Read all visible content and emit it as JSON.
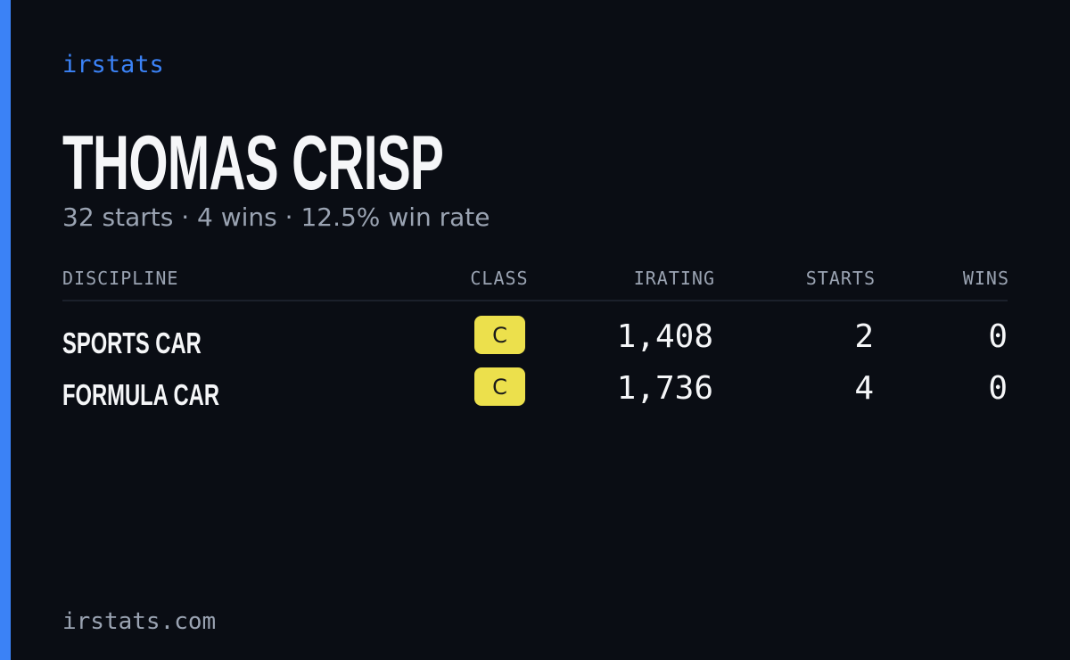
{
  "brand": "irstats",
  "header": {
    "name": "THOMAS CRISP",
    "summary": "32 starts · 4 wins · 12.5% win rate"
  },
  "table": {
    "columns": [
      "DISCIPLINE",
      "CLASS",
      "IRATING",
      "STARTS",
      "WINS"
    ],
    "rows": [
      [
        "SPORTS CAR",
        "C",
        "1,408",
        "2",
        "0"
      ],
      [
        "FORMULA CAR",
        "C",
        "1,736",
        "4",
        "0"
      ]
    ]
  },
  "footer": "irstats.com"
}
